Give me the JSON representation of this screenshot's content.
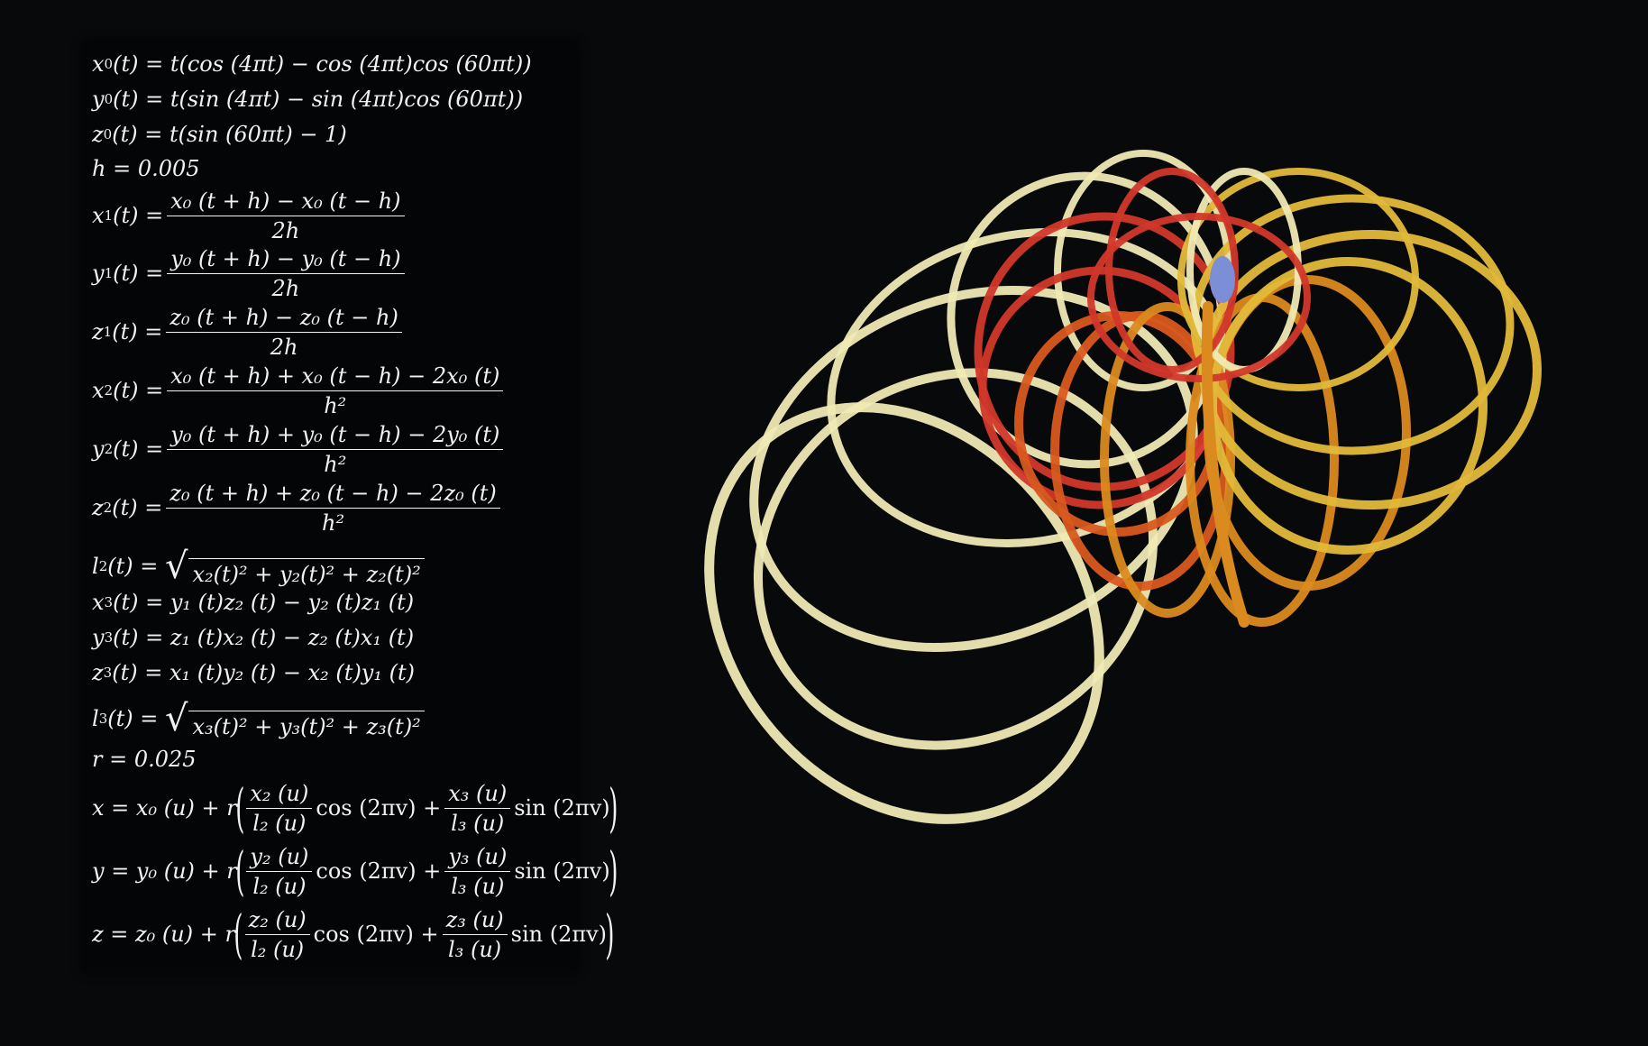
{
  "equations": {
    "x0": {
      "lhs": "x",
      "lsub": "0",
      "rhs": " (t) = t(cos (4πt) − cos (4πt)cos (60πt))"
    },
    "y0": {
      "lhs": "y",
      "lsub": "0",
      "rhs": " (t) = t(sin (4πt) − sin (4πt)cos (60πt))"
    },
    "z0": {
      "lhs": "z",
      "lsub": "0",
      "rhs": " (t) = t(sin (60πt) − 1)"
    },
    "h": "h = 0.005",
    "x1": {
      "lhs": "x",
      "lsub": "1",
      "eq": " (t) =",
      "num": "x₀ (t + h) − x₀ (t − h)",
      "den": "2h"
    },
    "y1": {
      "lhs": "y",
      "lsub": "1",
      "eq": " (t) =",
      "num": "y₀ (t + h) − y₀ (t − h)",
      "den": "2h"
    },
    "z1": {
      "lhs": "z",
      "lsub": "1",
      "eq": " (t) =",
      "num": "z₀ (t + h) − z₀ (t − h)",
      "den": "2h"
    },
    "x2": {
      "lhs": "x",
      "lsub": "2",
      "eq": " (t) =",
      "num": "x₀ (t + h) + x₀ (t − h) − 2x₀ (t)",
      "den": "h²"
    },
    "y2": {
      "lhs": "y",
      "lsub": "2",
      "eq": " (t) =",
      "num": "y₀ (t + h) + y₀ (t − h) − 2y₀ (t)",
      "den": "h²"
    },
    "z2": {
      "lhs": "z",
      "lsub": "2",
      "eq": " (t) =",
      "num": "z₀ (t + h) + z₀ (t − h) − 2z₀ (t)",
      "den": "h²"
    },
    "l2": {
      "lhs": "l",
      "lsub": "2",
      "eq": " (t) =",
      "under": "x₂(t)² + y₂(t)² + z₂(t)²"
    },
    "x3": {
      "lhs": "x",
      "lsub": "3",
      "rhs": " (t) = y₁ (t)z₂ (t) − y₂ (t)z₁ (t)"
    },
    "y3": {
      "lhs": "y",
      "lsub": "3",
      "rhs": " (t) = z₁ (t)x₂ (t) − z₂ (t)x₁ (t)"
    },
    "z3": {
      "lhs": "z",
      "lsub": "3",
      "rhs": " (t) = x₁ (t)y₂ (t) − x₂ (t)y₁ (t)"
    },
    "l3": {
      "lhs": "l",
      "lsub": "3",
      "eq": " (t) =",
      "under": "x₃(t)² + y₃(t)² + z₃(t)²"
    },
    "r": "r = 0.025",
    "x": {
      "pre": "x = x₀ (u) + r",
      "n1": "x₂ (u)",
      "d1": "l₂ (u)",
      "mid": "cos (2πv) +",
      "n2": "x₃ (u)",
      "d2": "l₃ (u)",
      "post": "sin (2πv)"
    },
    "y": {
      "pre": "y = y₀ (u) + r",
      "n1": "y₂ (u)",
      "d1": "l₂ (u)",
      "mid": "cos (2πv) +",
      "n2": "y₃ (u)",
      "d2": "l₃ (u)",
      "post": "sin (2πv)"
    },
    "z": {
      "pre": "z = z₀ (u) + r",
      "n1": "z₂ (u)",
      "d1": "l₂ (u)",
      "mid": "cos (2πv) +",
      "n2": "z₃ (u)",
      "d2": "l₃ (u)",
      "post": "sin (2πv)"
    }
  },
  "colors": {
    "background": "#08090b",
    "tube_pale": "#efe9b4",
    "tube_yellow": "#e2b93a",
    "tube_orange": "#db8a1f",
    "tube_red": "#d2372a",
    "tube_redorange": "#d9581f",
    "core_blue": "#7c8fd6"
  }
}
